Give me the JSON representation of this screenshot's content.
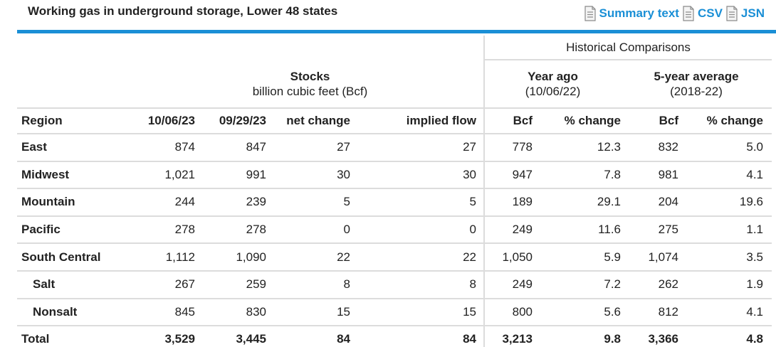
{
  "page": {
    "title": "Working gas in underground storage, Lower 48 states",
    "links": {
      "summary": "Summary text",
      "csv": "CSV",
      "json": "JSN"
    },
    "accent_color": "#1a8fd6"
  },
  "table": {
    "historical_header": "Historical Comparisons",
    "stocks": {
      "title": "Stocks",
      "subtitle": "billion cubic feet (Bcf)"
    },
    "year_ago": {
      "title": "Year ago",
      "subtitle": "(10/06/22)"
    },
    "five_year": {
      "title": "5-year average",
      "subtitle": "(2018-22)"
    },
    "columns": [
      "Region",
      "10/06/23",
      "09/29/23",
      "net change",
      "implied flow",
      "Bcf",
      "% change",
      "Bcf",
      "% change"
    ],
    "rows": [
      {
        "region": "East",
        "sub": false,
        "cells": [
          "874",
          "847",
          "27",
          "27",
          "778",
          "12.3",
          "832",
          "5.0"
        ]
      },
      {
        "region": "Midwest",
        "sub": false,
        "cells": [
          "1,021",
          "991",
          "30",
          "30",
          "947",
          "7.8",
          "981",
          "4.1"
        ]
      },
      {
        "region": "Mountain",
        "sub": false,
        "cells": [
          "244",
          "239",
          "5",
          "5",
          "189",
          "29.1",
          "204",
          "19.6"
        ]
      },
      {
        "region": "Pacific",
        "sub": false,
        "cells": [
          "278",
          "278",
          "0",
          "0",
          "249",
          "11.6",
          "275",
          "1.1"
        ]
      },
      {
        "region": "South Central",
        "sub": false,
        "cells": [
          "1,112",
          "1,090",
          "22",
          "22",
          "1,050",
          "5.9",
          "1,074",
          "3.5"
        ]
      },
      {
        "region": "Salt",
        "sub": true,
        "cells": [
          "267",
          "259",
          "8",
          "8",
          "249",
          "7.2",
          "262",
          "1.9"
        ]
      },
      {
        "region": "Nonsalt",
        "sub": true,
        "cells": [
          "845",
          "830",
          "15",
          "15",
          "800",
          "5.6",
          "812",
          "4.1"
        ]
      },
      {
        "region": "Total",
        "sub": false,
        "total": true,
        "cells": [
          "3,529",
          "3,445",
          "84",
          "84",
          "3,213",
          "9.8",
          "3,366",
          "4.8"
        ]
      }
    ]
  }
}
